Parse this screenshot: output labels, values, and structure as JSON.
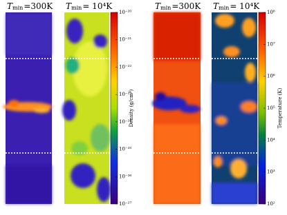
{
  "panels": [
    {
      "title": {
        "symbol": "T",
        "subscript": "min",
        "text": "=300K"
      }
    },
    {
      "title": {
        "symbol": "T",
        "subscript": "min",
        "text": "= 10⁴K"
      }
    },
    {
      "title": {
        "symbol": "T",
        "subscript": "min",
        "text": "=300K"
      }
    },
    {
      "title": {
        "symbol": "T",
        "subscript": "min",
        "text": "= 10⁴K"
      }
    }
  ],
  "colorbars": [
    {
      "label": "Density (g/cm³)",
      "log": true,
      "ticks": [
        {
          "value": 1e-20,
          "label": "10⁻²⁰"
        },
        {
          "value": 1e-21,
          "label": "10⁻²¹"
        },
        {
          "value": 1e-22,
          "label": "10⁻²²"
        },
        {
          "value": 1e-23,
          "label": "10⁻²³"
        },
        {
          "value": 1e-24,
          "label": "10⁻²⁴"
        },
        {
          "value": 1e-25,
          "label": "10⁻²⁵"
        },
        {
          "value": 1e-26,
          "label": "10⁻²⁶"
        },
        {
          "value": 1e-27,
          "label": "10⁻²⁷"
        }
      ]
    },
    {
      "label": "Temperature (K)",
      "log": true,
      "ticks": [
        {
          "value": 100000000,
          "label": "10⁸"
        },
        {
          "value": 10000000,
          "label": "10⁷"
        },
        {
          "value": 1000000,
          "label": "10⁶"
        },
        {
          "value": 100000,
          "label": "10⁵"
        },
        {
          "value": 10000,
          "label": "10⁴"
        },
        {
          "value": 1000,
          "label": "10³"
        },
        {
          "value": 100,
          "label": "10²"
        }
      ]
    }
  ]
}
